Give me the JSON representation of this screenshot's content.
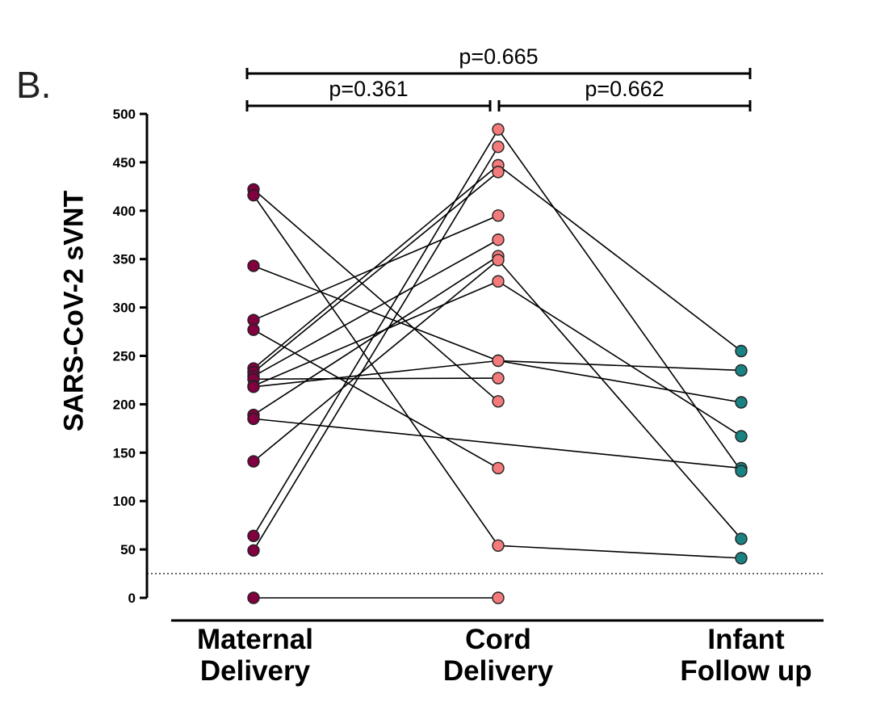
{
  "panel_label": "B.",
  "chart_data": {
    "type": "scatter",
    "ylabel": "SARS-CoV-2 sVNT",
    "ylim": [
      0,
      500
    ],
    "yticks": [
      0,
      50,
      100,
      150,
      200,
      250,
      300,
      350,
      400,
      450,
      500
    ],
    "categories": [
      {
        "line1": "Maternal",
        "line2": "Delivery"
      },
      {
        "line1": "Cord",
        "line2": "Delivery"
      },
      {
        "line1": "Infant",
        "line2": "Follow up"
      }
    ],
    "colors": {
      "maternal": "#800040",
      "cord": "#f47b7b",
      "infant": "#1b8282"
    },
    "threshold": 25,
    "comparisons": [
      {
        "from": 0,
        "to": 1,
        "label": "p=0.361"
      },
      {
        "from": 1,
        "to": 2,
        "label": "p=0.662"
      },
      {
        "from": 0,
        "to": 2,
        "label": "p=0.665"
      }
    ],
    "maternal_points": [
      422,
      416,
      343,
      287,
      277,
      237,
      233,
      229,
      226,
      219,
      218,
      189,
      185,
      141,
      64,
      49,
      0
    ],
    "cord_points": [
      484,
      466,
      447,
      440,
      395,
      370,
      353,
      349,
      327,
      245,
      245,
      227,
      203,
      134,
      54,
      0
    ],
    "infant_points": [
      255,
      235,
      202,
      167,
      134,
      131,
      61,
      41
    ],
    "pairs": [
      {
        "from": 0,
        "a": 422,
        "to": 1,
        "b": 203
      },
      {
        "from": 0,
        "a": 416,
        "to": 1,
        "b": 54
      },
      {
        "from": 0,
        "a": 343,
        "to": 1,
        "b": 245
      },
      {
        "from": 0,
        "a": 287,
        "to": 1,
        "b": 395
      },
      {
        "from": 0,
        "a": 277,
        "to": 1,
        "b": 134
      },
      {
        "from": 0,
        "a": 237,
        "to": 1,
        "b": 447
      },
      {
        "from": 0,
        "a": 233,
        "to": 1,
        "b": 440
      },
      {
        "from": 0,
        "a": 229,
        "to": 1,
        "b": 370
      },
      {
        "from": 0,
        "a": 226,
        "to": 1,
        "b": 227
      },
      {
        "from": 0,
        "a": 219,
        "to": 1,
        "b": 327
      },
      {
        "from": 0,
        "a": 218,
        "to": 1,
        "b": 245
      },
      {
        "from": 0,
        "a": 189,
        "to": 1,
        "b": 353
      },
      {
        "from": 0,
        "a": 185,
        "to": 2,
        "b": 134
      },
      {
        "from": 0,
        "a": 141,
        "to": 1,
        "b": 349
      },
      {
        "from": 0,
        "a": 64,
        "to": 1,
        "b": 484
      },
      {
        "from": 0,
        "a": 49,
        "to": 1,
        "b": 466
      },
      {
        "from": 0,
        "a": 0,
        "to": 1,
        "b": 0
      },
      {
        "from": 1,
        "a": 484,
        "to": 2,
        "b": 131
      },
      {
        "from": 1,
        "a": 447,
        "to": 2,
        "b": 255
      },
      {
        "from": 1,
        "a": 349,
        "to": 2,
        "b": 61
      },
      {
        "from": 1,
        "a": 327,
        "to": 2,
        "b": 167
      },
      {
        "from": 1,
        "a": 245,
        "to": 2,
        "b": 235
      },
      {
        "from": 1,
        "a": 245,
        "to": 2,
        "b": 202
      },
      {
        "from": 1,
        "a": 54,
        "to": 2,
        "b": 41
      }
    ]
  }
}
